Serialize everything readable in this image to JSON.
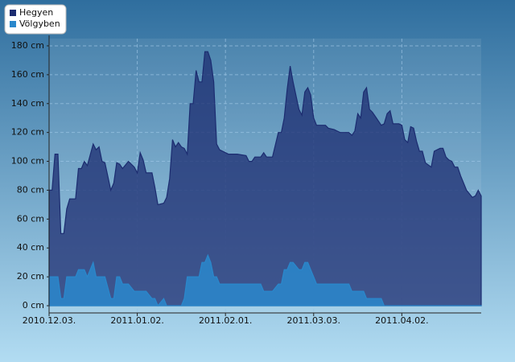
{
  "chart_data": {
    "type": "area",
    "x": [
      "2010.12.03.",
      "2010.12.04.",
      "2010.12.05.",
      "2010.12.06.",
      "2010.12.07.",
      "2010.12.08.",
      "2010.12.09.",
      "2010.12.10.",
      "2010.12.12.",
      "2010.12.13.",
      "2010.12.14.",
      "2010.12.15.",
      "2010.12.16.",
      "2010.12.18.",
      "2010.12.19.",
      "2010.12.20.",
      "2010.12.21.",
      "2010.12.22.",
      "2010.12.24.",
      "2010.12.25.",
      "2010.12.26.",
      "2010.12.27.",
      "2010.12.28.",
      "2010.12.30.",
      "2011.01.01.",
      "2011.01.02.",
      "2011.01.03.",
      "2011.01.04.",
      "2011.01.05.",
      "2011.01.07.",
      "2011.01.08.",
      "2011.01.09.",
      "2011.01.11.",
      "2011.01.12.",
      "2011.01.13.",
      "2011.01.14.",
      "2011.01.15.",
      "2011.01.16.",
      "2011.01.17.",
      "2011.01.18.",
      "2011.01.19.",
      "2011.01.20.",
      "2011.01.21.",
      "2011.01.22.",
      "2011.01.23.",
      "2011.01.24.",
      "2011.01.25.",
      "2011.01.26.",
      "2011.01.27.",
      "2011.01.28.",
      "2011.01.29.",
      "2011.01.30.",
      "2011.02.02.",
      "2011.02.05.",
      "2011.02.08.",
      "2011.02.09.",
      "2011.02.10.",
      "2011.02.11.",
      "2011.02.13.",
      "2011.02.14.",
      "2011.02.15.",
      "2011.02.17.",
      "2011.02.19.",
      "2011.02.20.",
      "2011.02.21.",
      "2011.02.22.",
      "2011.02.23.",
      "2011.02.24.",
      "2011.02.26.",
      "2011.02.27.",
      "2011.02.28.",
      "2011.03.01.",
      "2011.03.02.",
      "2011.03.03.",
      "2011.03.04.",
      "2011.03.07.",
      "2011.03.08.",
      "2011.03.10.",
      "2011.03.11.",
      "2011.03.12.",
      "2011.03.15.",
      "2011.03.16.",
      "2011.03.17.",
      "2011.03.18.",
      "2011.03.19.",
      "2011.03.20.",
      "2011.03.21.",
      "2011.03.22.",
      "2011.03.23.",
      "2011.03.24.",
      "2011.03.26.",
      "2011.03.27.",
      "2011.03.28.",
      "2011.03.29.",
      "2011.03.30.",
      "2011.04.01.",
      "2011.04.02.",
      "2011.04.03.",
      "2011.04.04.",
      "2011.04.05.",
      "2011.04.06.",
      "2011.04.07.",
      "2011.04.08.",
      "2011.04.09.",
      "2011.04.10.",
      "2011.04.12.",
      "2011.04.13.",
      "2011.04.14.",
      "2011.04.15.",
      "2011.04.16.",
      "2011.04.17.",
      "2011.04.18.",
      "2011.04.19.",
      "2011.04.20.",
      "2011.04.21.",
      "2011.04.22.",
      "2011.04.23.",
      "2011.04.24.",
      "2011.04.26.",
      "2011.04.27.",
      "2011.04.28.",
      "2011.04.29."
    ],
    "series": [
      {
        "name": "Hegyen",
        "color": "#1c2c70",
        "values": [
          80,
          80,
          105,
          105,
          50,
          50,
          67,
          74,
          74,
          95,
          95,
          100,
          97,
          112,
          108,
          110,
          100,
          99,
          80,
          85,
          99,
          98,
          95,
          100,
          96,
          92,
          106,
          101,
          92,
          92,
          82,
          70,
          71,
          75,
          88,
          115,
          110,
          113,
          110,
          109,
          105,
          140,
          140,
          163,
          155,
          155,
          176,
          176,
          170,
          155,
          112,
          108,
          105,
          105,
          104,
          100,
          100,
          103,
          103,
          106,
          103,
          103,
          120,
          120,
          130,
          150,
          166,
          155,
          136,
          132,
          148,
          151,
          146,
          130,
          125,
          125,
          123,
          122,
          121,
          120,
          120,
          118,
          121,
          133,
          130,
          148,
          151,
          136,
          134,
          131,
          125,
          126,
          133,
          135,
          126,
          126,
          125,
          115,
          113,
          124,
          123,
          114,
          107,
          107,
          99,
          96,
          107,
          108,
          109,
          109,
          103,
          101,
          100,
          96,
          96,
          90,
          85,
          80,
          75,
          76,
          80,
          76
        ]
      },
      {
        "name": "Völgyben",
        "color": "#2a88cc",
        "values": [
          20,
          20,
          20,
          20,
          5,
          5,
          20,
          20,
          20,
          25,
          25,
          25,
          20,
          30,
          20,
          20,
          20,
          20,
          5,
          5,
          20,
          20,
          15,
          15,
          10,
          10,
          10,
          10,
          10,
          5,
          5,
          0,
          5,
          0,
          0,
          0,
          0,
          0,
          0,
          5,
          20,
          20,
          20,
          20,
          20,
          30,
          30,
          35,
          30,
          20,
          20,
          15,
          15,
          15,
          15,
          15,
          15,
          15,
          15,
          10,
          10,
          10,
          15,
          15,
          25,
          25,
          30,
          30,
          25,
          25,
          30,
          30,
          25,
          20,
          15,
          15,
          15,
          15,
          15,
          15,
          15,
          10,
          10,
          10,
          10,
          10,
          5,
          5,
          5,
          5,
          5,
          0,
          0,
          0,
          0,
          0,
          0,
          0,
          0,
          0,
          0,
          0,
          0,
          0,
          0,
          0,
          0,
          0,
          0,
          0,
          0,
          0,
          0,
          0,
          0,
          0,
          0,
          0,
          0,
          0,
          0,
          0
        ]
      }
    ],
    "xticks": [
      "2010.12.03.",
      "2011.01.02.",
      "2011.02.01.",
      "2011.03.03.",
      "2011.04.02."
    ],
    "ylim": [
      -5,
      185
    ],
    "yticks": [
      {
        "value": 0,
        "label": "0 cm"
      },
      {
        "value": 20,
        "label": "20 cm"
      },
      {
        "value": 40,
        "label": "40 cm"
      },
      {
        "value": 60,
        "label": "60 cm"
      },
      {
        "value": 80,
        "label": "80 cm"
      },
      {
        "value": 100,
        "label": "100 cm"
      },
      {
        "value": 120,
        "label": "120 cm"
      },
      {
        "value": 140,
        "label": "140 cm"
      },
      {
        "value": 160,
        "label": "160 cm"
      },
      {
        "value": 180,
        "label": "180 cm"
      }
    ],
    "grid": true,
    "legend": "upper left"
  }
}
